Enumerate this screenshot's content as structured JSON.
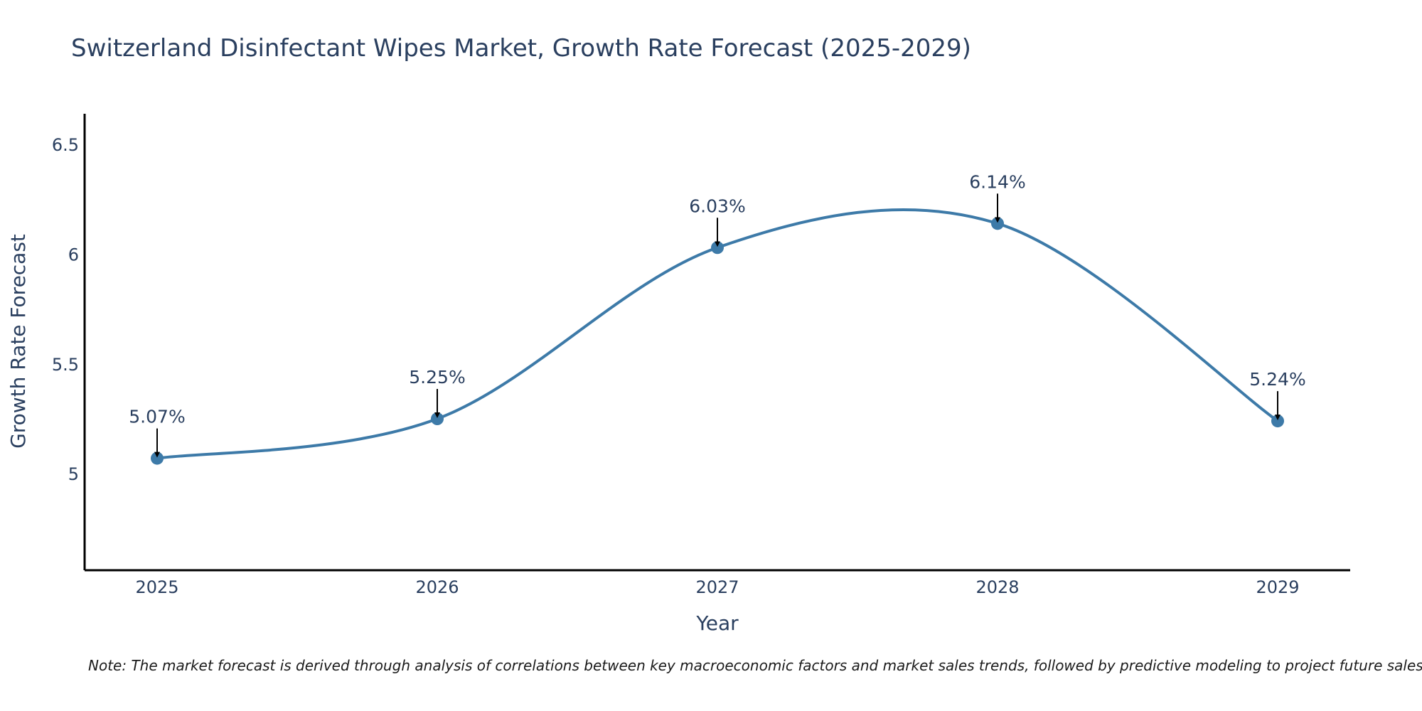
{
  "chart_data": {
    "type": "line",
    "title": "Switzerland Disinfectant Wipes Market, Growth Rate Forecast (2025-2029)",
    "xlabel": "Year",
    "ylabel": "Growth Rate Forecast",
    "x": [
      "2025",
      "2026",
      "2027",
      "2028",
      "2029"
    ],
    "series": [
      {
        "name": "Growth Rate Forecast",
        "values": [
          5.07,
          5.25,
          6.03,
          6.14,
          5.24
        ],
        "labels": [
          "5.07%",
          "5.25%",
          "6.03%",
          "6.14%",
          "5.24%"
        ]
      }
    ],
    "ylim": [
      4.56,
      6.64
    ],
    "yticks": [
      5,
      5.5,
      6,
      6.5
    ],
    "ytick_labels": [
      "5",
      "5.5",
      "6",
      "6.5"
    ],
    "grid": false,
    "line_color": "#3d7aa8",
    "marker_color": "#3d7aa8",
    "arrow_color": "#000000",
    "axis_color": "#000000",
    "text_color": "#2a3f5f",
    "note": "Note: The market forecast is derived through analysis of correlations between key macroeconomic factors and market sales trends, followed by predictive modeling to project future sales"
  }
}
